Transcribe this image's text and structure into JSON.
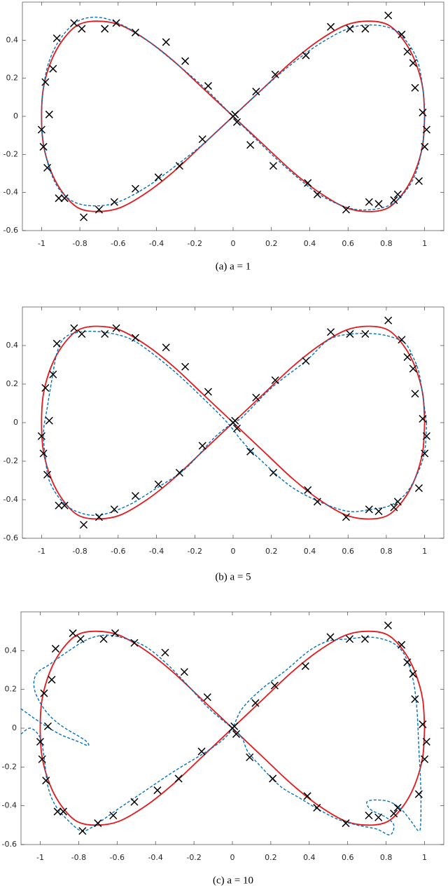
{
  "chart_data": [
    {
      "type": "line",
      "caption": "(a) a = 1",
      "xlim": [
        -1.1,
        1.1
      ],
      "ylim": [
        -0.6,
        0.6
      ],
      "xticks": [
        -1,
        -0.8,
        -0.6,
        -0.4,
        -0.2,
        0,
        0.2,
        0.4,
        0.6,
        0.8,
        1
      ],
      "yticks": [
        -0.6,
        -0.4,
        -0.2,
        0,
        0.2,
        0.4
      ],
      "series": [
        {
          "color": "#e3191c",
          "line_style": "solid",
          "x": [
            1,
            0.99,
            0.95,
            0.89,
            0.81,
            0.71,
            0.59,
            0.45,
            0.31,
            0.16,
            0,
            -0.16,
            -0.31,
            -0.45,
            -0.59,
            -0.71,
            -0.81,
            -0.89,
            -0.95,
            -0.99,
            -1,
            -0.99,
            -0.95,
            -0.89,
            -0.81,
            -0.71,
            -0.59,
            -0.45,
            -0.31,
            -0.16,
            0,
            0.16,
            0.31,
            0.45,
            0.59,
            0.71,
            0.81,
            0.89,
            0.95,
            0.99,
            1
          ],
          "values": [
            0,
            0.15,
            0.29,
            0.4,
            0.48,
            0.5,
            0.48,
            0.4,
            0.29,
            0.15,
            0,
            -0.15,
            -0.29,
            -0.4,
            -0.48,
            -0.5,
            -0.48,
            -0.4,
            -0.29,
            -0.15,
            0,
            0.15,
            0.29,
            0.4,
            0.48,
            0.5,
            0.48,
            0.4,
            0.29,
            0.15,
            0,
            -0.15,
            -0.29,
            -0.4,
            -0.48,
            -0.5,
            -0.48,
            -0.4,
            -0.29,
            -0.15,
            0
          ]
        },
        {
          "color": "#0072bd",
          "line_style": "dashed",
          "x": [
            1,
            0.99,
            0.96,
            0.9,
            0.83,
            0.72,
            0.6,
            0.45,
            0.3,
            0.15,
            0,
            -0.15,
            -0.3,
            -0.45,
            -0.6,
            -0.72,
            -0.83,
            -0.91,
            -0.96,
            -0.99,
            -1,
            -0.99,
            -0.96,
            -0.9,
            -0.81,
            -0.7,
            -0.58,
            -0.45,
            -0.3,
            -0.15,
            0,
            0.15,
            0.3,
            0.45,
            0.6,
            0.72,
            0.83,
            0.91,
            0.96,
            0.99,
            1
          ],
          "values": [
            0,
            0.15,
            0.3,
            0.4,
            0.46,
            0.48,
            0.46,
            0.38,
            0.27,
            0.14,
            0,
            -0.14,
            -0.26,
            -0.37,
            -0.45,
            -0.47,
            -0.45,
            -0.38,
            -0.27,
            -0.14,
            0,
            0.15,
            0.29,
            0.41,
            0.5,
            0.52,
            0.48,
            0.4,
            0.28,
            0.15,
            0,
            -0.15,
            -0.29,
            -0.41,
            -0.48,
            -0.49,
            -0.46,
            -0.38,
            -0.28,
            -0.14,
            0
          ]
        },
        {
          "color": "#000000",
          "line_style": "none",
          "marker": "x",
          "x": [
            -0.83,
            -0.79,
            -0.92,
            -0.67,
            -0.61,
            -0.51,
            -0.35,
            -0.25,
            -0.13,
            -0.94,
            -0.98,
            -0.96,
            -1.0,
            -0.99,
            -0.97,
            -0.91,
            -0.88,
            -0.78,
            -0.7,
            -0.62,
            -0.51,
            -0.39,
            -0.28,
            -0.16,
            0,
            0.02,
            0.01,
            0.09,
            0.12,
            0.21,
            0.22,
            0.38,
            0.39,
            0.44,
            0.51,
            0.59,
            0.61,
            0.69,
            0.71,
            0.76,
            0.81,
            0.84,
            0.86,
            0.88,
            0.91,
            0.94,
            0.95,
            0.97,
            0.99,
            1.01,
            1.0
          ],
          "values": [
            0.49,
            0.46,
            0.41,
            0.46,
            0.49,
            0.44,
            0.39,
            0.29,
            0.16,
            0.25,
            0.18,
            0.01,
            -0.07,
            -0.16,
            -0.27,
            -0.43,
            -0.43,
            -0.53,
            -0.49,
            -0.45,
            -0.38,
            -0.32,
            -0.26,
            -0.12,
            0,
            -0.03,
            0.01,
            -0.15,
            0.13,
            -0.26,
            0.22,
            0.32,
            -0.35,
            -0.41,
            0.47,
            -0.49,
            0.46,
            0.46,
            -0.45,
            -0.46,
            0.53,
            -0.44,
            -0.41,
            0.43,
            0.34,
            0.28,
            0.15,
            -0.34,
            0.02,
            -0.07,
            -0.16
          ]
        }
      ]
    },
    {
      "type": "line",
      "caption": "(b) a = 5",
      "xlim": [
        -1.1,
        1.1
      ],
      "ylim": [
        -0.6,
        0.6
      ],
      "xticks": [
        -1,
        -0.8,
        -0.6,
        -0.4,
        -0.2,
        0,
        0.2,
        0.4,
        0.6,
        0.8,
        1
      ],
      "yticks": [
        -0.6,
        -0.4,
        -0.2,
        0,
        0.2,
        0.4
      ],
      "series": [
        {
          "color": "#e3191c",
          "line_style": "solid",
          "x": [
            1,
            0.99,
            0.95,
            0.89,
            0.81,
            0.71,
            0.59,
            0.45,
            0.31,
            0.16,
            0,
            -0.16,
            -0.31,
            -0.45,
            -0.59,
            -0.71,
            -0.81,
            -0.89,
            -0.95,
            -0.99,
            -1,
            -0.99,
            -0.95,
            -0.89,
            -0.81,
            -0.71,
            -0.59,
            -0.45,
            -0.31,
            -0.16,
            0,
            0.16,
            0.31,
            0.45,
            0.59,
            0.71,
            0.81,
            0.89,
            0.95,
            0.99,
            1
          ],
          "values": [
            0,
            0.15,
            0.29,
            0.4,
            0.48,
            0.5,
            0.48,
            0.4,
            0.29,
            0.15,
            0,
            -0.15,
            -0.29,
            -0.4,
            -0.48,
            -0.5,
            -0.48,
            -0.4,
            -0.29,
            -0.15,
            0,
            0.15,
            0.29,
            0.4,
            0.48,
            0.5,
            0.48,
            0.4,
            0.29,
            0.15,
            0,
            -0.15,
            -0.29,
            -0.4,
            -0.48,
            -0.5,
            -0.48,
            -0.4,
            -0.29,
            -0.15,
            0
          ]
        },
        {
          "color": "#0072bd",
          "line_style": "dashed",
          "x": [
            1.01,
            0.99,
            0.97,
            0.94,
            0.9,
            0.84,
            0.75,
            0.62,
            0.5,
            0.38,
            0.2,
            0.05,
            0,
            -0.1,
            -0.25,
            -0.4,
            -0.55,
            -0.7,
            -0.82,
            -0.9,
            -0.96,
            -0.98,
            -0.99,
            -0.97,
            -0.95,
            -0.92,
            -0.88,
            -0.8,
            -0.68,
            -0.55,
            -0.45,
            -0.3,
            -0.15,
            -0.03,
            0.05,
            0.15,
            0.3,
            0.45,
            0.6,
            0.72,
            0.82,
            0.9,
            0.96,
            1,
            1.01
          ],
          "values": [
            0,
            0.14,
            0.26,
            0.34,
            0.41,
            0.44,
            0.46,
            0.46,
            0.43,
            0.32,
            0.18,
            0.03,
            0,
            -0.08,
            -0.24,
            -0.34,
            -0.43,
            -0.48,
            -0.46,
            -0.4,
            -0.3,
            -0.18,
            -0.05,
            0.08,
            0.2,
            0.36,
            0.44,
            0.47,
            0.47,
            0.44,
            0.38,
            0.26,
            0.12,
            0,
            -0.1,
            -0.2,
            -0.33,
            -0.41,
            -0.46,
            -0.45,
            -0.43,
            -0.37,
            -0.27,
            -0.15,
            0
          ]
        },
        {
          "color": "#000000",
          "line_style": "none",
          "marker": "x",
          "x": [
            -0.83,
            -0.79,
            -0.92,
            -0.67,
            -0.61,
            -0.51,
            -0.35,
            -0.25,
            -0.13,
            -0.94,
            -0.98,
            -0.96,
            -1.0,
            -0.99,
            -0.97,
            -0.91,
            -0.88,
            -0.78,
            -0.7,
            -0.62,
            -0.51,
            -0.39,
            -0.28,
            -0.16,
            0,
            0.02,
            0.01,
            0.09,
            0.12,
            0.21,
            0.22,
            0.38,
            0.39,
            0.44,
            0.51,
            0.59,
            0.61,
            0.69,
            0.71,
            0.76,
            0.81,
            0.84,
            0.86,
            0.88,
            0.91,
            0.94,
            0.95,
            0.97,
            0.99,
            1.01,
            1.0
          ],
          "values": [
            0.49,
            0.46,
            0.41,
            0.46,
            0.49,
            0.44,
            0.39,
            0.29,
            0.16,
            0.25,
            0.18,
            0.01,
            -0.07,
            -0.16,
            -0.27,
            -0.43,
            -0.43,
            -0.53,
            -0.49,
            -0.45,
            -0.38,
            -0.32,
            -0.26,
            -0.12,
            0,
            -0.03,
            0.01,
            -0.15,
            0.13,
            -0.26,
            0.22,
            0.32,
            -0.35,
            -0.41,
            0.47,
            -0.49,
            0.46,
            0.46,
            -0.45,
            -0.46,
            0.53,
            -0.44,
            -0.41,
            0.43,
            0.34,
            0.28,
            0.15,
            -0.34,
            0.02,
            -0.07,
            -0.16
          ]
        }
      ]
    },
    {
      "type": "line",
      "caption": "(c) a = 10",
      "xlim": [
        -1.1,
        1.1
      ],
      "ylim": [
        -0.6,
        0.6
      ],
      "xticks": [
        -1,
        -0.8,
        -0.6,
        -0.4,
        -0.2,
        0,
        0.2,
        0.4,
        0.6,
        0.8,
        1
      ],
      "yticks": [
        -0.6,
        -0.4,
        -0.2,
        0,
        0.2,
        0.4
      ],
      "series": [
        {
          "color": "#e3191c",
          "line_style": "solid",
          "x": [
            1,
            0.99,
            0.95,
            0.89,
            0.81,
            0.71,
            0.59,
            0.45,
            0.31,
            0.16,
            0,
            -0.16,
            -0.31,
            -0.45,
            -0.59,
            -0.71,
            -0.81,
            -0.89,
            -0.95,
            -0.99,
            -1,
            -0.99,
            -0.95,
            -0.89,
            -0.81,
            -0.71,
            -0.59,
            -0.45,
            -0.31,
            -0.16,
            0,
            0.16,
            0.31,
            0.45,
            0.59,
            0.71,
            0.81,
            0.89,
            0.95,
            0.99,
            1
          ],
          "values": [
            0,
            0.15,
            0.29,
            0.4,
            0.48,
            0.5,
            0.48,
            0.4,
            0.29,
            0.15,
            0,
            -0.15,
            -0.29,
            -0.4,
            -0.48,
            -0.5,
            -0.48,
            -0.4,
            -0.29,
            -0.15,
            0,
            0.15,
            0.29,
            0.4,
            0.48,
            0.5,
            0.48,
            0.4,
            0.29,
            0.15,
            0,
            -0.15,
            -0.29,
            -0.4,
            -0.48,
            -0.5,
            -0.48,
            -0.4,
            -0.29,
            -0.15,
            0
          ]
        },
        {
          "color": "#0072bd",
          "line_style": "dashed",
          "x": [
            -1.1,
            -1.0,
            -0.9,
            -0.8,
            -0.75,
            -0.77,
            -0.9,
            -0.98,
            -1.03,
            -1.02,
            -0.95,
            -0.85,
            -0.75,
            -0.65,
            -0.55,
            -0.45,
            -0.35,
            -0.25,
            -0.12,
            0,
            0.05,
            0.08,
            0.15,
            0.25,
            0.35,
            0.45,
            0.55,
            0.65,
            0.75,
            0.82,
            0.84,
            0.8,
            0.72,
            0.7,
            0.75,
            0.82,
            0.88,
            0.93,
            0.97,
            0.98,
            0.98,
            0.97,
            0.96,
            0.94,
            0.9,
            0.85,
            0.78,
            0.7,
            0.6,
            0.5,
            0.4,
            0.28,
            0.15,
            0.05,
            0,
            -0.05,
            -0.15,
            -0.3,
            -0.45,
            -0.6,
            -0.7,
            -0.78,
            -0.85,
            -0.92,
            -0.96,
            -0.98,
            -1.0,
            -1.05,
            -1.1
          ],
          "values": [
            0.1,
            0.03,
            -0.03,
            -0.07,
            -0.09,
            -0.06,
            0.02,
            0.1,
            0.2,
            0.28,
            0.33,
            0.4,
            0.46,
            0.48,
            0.46,
            0.42,
            0.34,
            0.24,
            0.1,
            0,
            -0.05,
            -0.12,
            -0.2,
            -0.3,
            -0.36,
            -0.42,
            -0.47,
            -0.5,
            -0.52,
            -0.55,
            -0.5,
            -0.46,
            -0.42,
            -0.38,
            -0.37,
            -0.38,
            -0.42,
            -0.48,
            -0.53,
            -0.48,
            -0.3,
            -0.1,
            0.1,
            0.25,
            0.37,
            0.43,
            0.46,
            0.47,
            0.46,
            0.45,
            0.4,
            0.3,
            0.2,
            0.1,
            0,
            -0.06,
            -0.13,
            -0.22,
            -0.32,
            -0.42,
            -0.49,
            -0.53,
            -0.48,
            -0.4,
            -0.3,
            -0.15,
            -0.05,
            0,
            -0.03
          ]
        },
        {
          "color": "#000000",
          "line_style": "none",
          "marker": "x",
          "x": [
            -0.83,
            -0.79,
            -0.92,
            -0.67,
            -0.61,
            -0.51,
            -0.35,
            -0.25,
            -0.13,
            -0.94,
            -0.98,
            -0.96,
            -1.0,
            -0.99,
            -0.97,
            -0.91,
            -0.88,
            -0.78,
            -0.7,
            -0.62,
            -0.51,
            -0.39,
            -0.28,
            -0.16,
            0,
            0.02,
            0.01,
            0.09,
            0.12,
            0.21,
            0.22,
            0.38,
            0.39,
            0.44,
            0.51,
            0.59,
            0.61,
            0.69,
            0.71,
            0.76,
            0.81,
            0.84,
            0.86,
            0.88,
            0.91,
            0.94,
            0.95,
            0.97,
            0.99,
            1.01,
            1.0
          ],
          "values": [
            0.49,
            0.46,
            0.41,
            0.46,
            0.49,
            0.44,
            0.39,
            0.29,
            0.16,
            0.25,
            0.18,
            0.01,
            -0.07,
            -0.16,
            -0.27,
            -0.43,
            -0.43,
            -0.53,
            -0.49,
            -0.45,
            -0.38,
            -0.32,
            -0.26,
            -0.12,
            0,
            -0.03,
            0.01,
            -0.15,
            0.13,
            -0.26,
            0.22,
            0.32,
            -0.35,
            -0.41,
            0.47,
            -0.49,
            0.46,
            0.46,
            -0.45,
            -0.46,
            0.53,
            -0.44,
            -0.41,
            0.43,
            0.34,
            0.28,
            0.15,
            -0.34,
            0.02,
            -0.07,
            -0.16
          ]
        }
      ]
    }
  ]
}
